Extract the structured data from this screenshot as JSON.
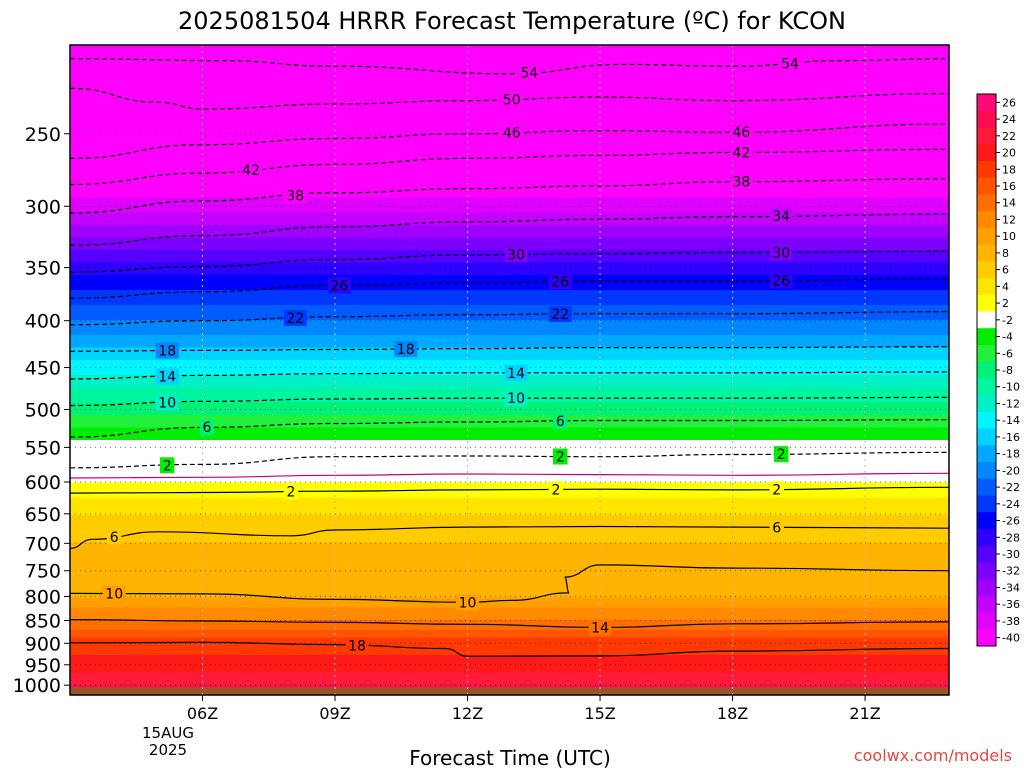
{
  "chart_data": {
    "type": "heatmap",
    "title": "2025081504 HRRR Forecast Temperature (ºC) for KCON",
    "xlabel": "Forecast Time (UTC)",
    "ylabel": "",
    "credit": "coolwx.com/models",
    "x_ticks": [
      "06Z",
      "09Z",
      "12Z",
      "15Z",
      "18Z",
      "21Z"
    ],
    "x_tick_hours": [
      6,
      9,
      12,
      15,
      18,
      21
    ],
    "x_date_lines": [
      "15AUG",
      "2025"
    ],
    "xlim_hours": [
      3.0,
      22.9
    ],
    "y_ticks": [
      250,
      300,
      350,
      400,
      450,
      500,
      550,
      600,
      650,
      700,
      750,
      800,
      850,
      900,
      950,
      1000
    ],
    "ylim_hpa": [
      1025,
      200
    ],
    "y_scale": "log",
    "grid": true,
    "colorbar_ticks": [
      26,
      24,
      22,
      20,
      18,
      16,
      14,
      12,
      10,
      8,
      6,
      4,
      2,
      -2,
      -4,
      -6,
      -8,
      -10,
      -12,
      -14,
      -16,
      -18,
      -20,
      -22,
      -24,
      -26,
      -28,
      -30,
      -32,
      -34,
      -36,
      -38,
      -40
    ],
    "colorbar_colors": [
      "#ff0a7a",
      "#ff0a55",
      "#ff1a3a",
      "#ff1a1a",
      "#ff3a00",
      "#ff5500",
      "#ff6e00",
      "#ff8a00",
      "#ffa000",
      "#ffb400",
      "#ffcc00",
      "#ffe400",
      "#ffff00",
      "#ffffff",
      "#00ee00",
      "#22f03c",
      "#00f078",
      "#00f5a0",
      "#00f0c8",
      "#00f5ff",
      "#00d2ff",
      "#00a8ff",
      "#0087ff",
      "#005cff",
      "#0037ff",
      "#0000ff",
      "#2d00ff",
      "#5500ff",
      "#7d00ff",
      "#a000ff",
      "#c400ff",
      "#e000ff",
      "#ff00ff"
    ],
    "temperature_profile": {
      "pressure_hpa": [
        1000,
        950,
        900,
        850,
        800,
        750,
        700,
        650,
        600,
        550,
        500,
        450,
        400,
        350,
        300,
        250,
        210
      ],
      "temp_c_at_06z": [
        24,
        21,
        19,
        14,
        10,
        9,
        8,
        6,
        2,
        -1,
        -7,
        -13,
        -20,
        -27,
        -37,
        -46,
        -54
      ]
    },
    "contours": [
      {
        "value": -54,
        "label": "54",
        "x": [
          3.0,
          6.4,
          9.0,
          13.0,
          15.5,
          18.0,
          20.5,
          22.9
        ],
        "p": [
          207,
          208,
          211,
          215,
          210,
          211,
          208,
          207
        ],
        "labels_at": [
          13.4,
          19.3
        ]
      },
      {
        "value": -50,
        "label": "50",
        "x": [
          3.0,
          5.0,
          6.0,
          9.0,
          12.0,
          15.0,
          18.0,
          22.9
        ],
        "p": [
          223,
          231,
          235,
          232,
          230,
          228,
          230,
          226
        ],
        "labels_at": [
          13.0
        ]
      },
      {
        "value": -46,
        "label": "46",
        "x": [
          3.0,
          6.0,
          9.0,
          12.0,
          15.0,
          18.0,
          22.9
        ],
        "p": [
          266,
          257,
          253,
          250,
          248,
          249,
          244
        ],
        "labels_at": [
          13.0,
          18.2
        ]
      },
      {
        "value": -42,
        "label": "42",
        "x": [
          3.0,
          6.0,
          9.0,
          12.0,
          15.0,
          18.0,
          22.9
        ],
        "p": [
          284,
          276,
          270,
          266,
          264,
          262,
          260
        ],
        "labels_at": [
          7.1,
          18.2
        ]
      },
      {
        "value": -38,
        "label": "38",
        "x": [
          3.0,
          6.0,
          9.0,
          12.0,
          15.0,
          18.0,
          22.9
        ],
        "p": [
          305,
          296,
          290,
          287,
          285,
          282,
          280
        ],
        "labels_at": [
          8.1,
          18.2
        ]
      },
      {
        "value": -34,
        "label": "34",
        "x": [
          3.0,
          6.0,
          9.0,
          12.0,
          15.0,
          18.0,
          22.9
        ],
        "p": [
          331,
          323,
          316,
          312,
          310,
          308,
          306
        ],
        "labels_at": [
          19.1
        ]
      },
      {
        "value": -30,
        "label": "30",
        "x": [
          3.0,
          6.0,
          9.0,
          12.0,
          15.0,
          18.0,
          22.9
        ],
        "p": [
          354,
          349,
          343,
          339,
          338,
          337,
          336
        ],
        "labels_at": [
          13.1,
          19.1
        ]
      },
      {
        "value": -26,
        "label": "26",
        "x": [
          3.0,
          6.0,
          9.0,
          12.0,
          15.0,
          18.0,
          22.9
        ],
        "p": [
          378,
          372,
          366,
          364,
          362,
          362,
          360
        ],
        "labels_at": [
          9.1,
          14.1,
          19.1
        ]
      },
      {
        "value": -22,
        "label": "22",
        "x": [
          3.0,
          6.0,
          9.0,
          12.0,
          15.0,
          18.0,
          22.9
        ],
        "p": [
          404,
          400,
          396,
          394,
          393,
          393,
          391
        ],
        "labels_at": [
          8.1,
          14.1
        ]
      },
      {
        "value": -18,
        "label": "18",
        "x": [
          3.0,
          6.0,
          9.0,
          12.0,
          15.0,
          18.0,
          22.9
        ],
        "p": [
          432,
          431,
          430,
          429,
          428,
          428,
          427
        ],
        "labels_at": [
          5.2,
          10.6
        ]
      },
      {
        "value": -14,
        "label": "14",
        "x": [
          3.0,
          6.0,
          9.0,
          12.0,
          15.0,
          18.0,
          22.9
        ],
        "p": [
          463,
          459,
          457,
          456,
          456,
          456,
          455
        ],
        "labels_at": [
          5.2,
          13.1
        ]
      },
      {
        "value": -10,
        "label": "10",
        "x": [
          3.0,
          6.0,
          9.0,
          12.0,
          15.0,
          18.0,
          22.9
        ],
        "p": [
          495,
          490,
          487,
          486,
          486,
          486,
          485
        ],
        "labels_at": [
          5.2,
          13.1
        ]
      },
      {
        "value": -6,
        "label": "6",
        "x": [
          3.0,
          6.0,
          9.0,
          12.0,
          15.0,
          18.0,
          22.9
        ],
        "p": [
          536,
          523,
          518,
          516,
          514,
          514,
          513
        ],
        "labels_at": [
          6.1,
          14.1
        ]
      },
      {
        "value": -2,
        "label": "2",
        "x": [
          3.0,
          6.0,
          9.0,
          12.0,
          15.0,
          18.0,
          22.9
        ],
        "p": [
          579,
          574,
          563,
          562,
          563,
          560,
          557
        ],
        "labels_at": [
          5.2,
          14.1,
          19.1
        ]
      },
      {
        "value": 0,
        "label": "",
        "x": [
          3.0,
          6.0,
          9.0,
          12.0,
          15.0,
          18.0,
          22.9
        ],
        "p": [
          594,
          593,
          590,
          588,
          589,
          590,
          587
        ],
        "labels_at": [],
        "color": "#c8007a"
      },
      {
        "value": 2,
        "label": "2",
        "x": [
          3.0,
          6.0,
          9.0,
          12.0,
          15.0,
          18.0,
          22.9
        ],
        "p": [
          617,
          616,
          614,
          612,
          611,
          612,
          608
        ],
        "labels_at": [
          8.0,
          14.0,
          19.0
        ]
      },
      {
        "value": 6,
        "label": "6",
        "x": [
          3.0,
          3.5,
          5.0,
          8.0,
          9.0,
          12.0,
          15.0,
          18.0,
          22.9
        ],
        "p": [
          709,
          693,
          680,
          687,
          677,
          672,
          671,
          672,
          674
        ],
        "labels_at": [
          4.0,
          19.0
        ]
      },
      {
        "value": 10,
        "label": "10",
        "x": [
          3.0,
          6.0,
          9.0,
          12.0,
          13.0,
          14.3,
          14.2,
          15.0,
          18.0,
          22.9
        ],
        "p": [
          794,
          795,
          806,
          812,
          808,
          793,
          762,
          739,
          745,
          750
        ],
        "labels_at": [
          4.0,
          12.0
        ]
      },
      {
        "value": 14,
        "label": "14",
        "x": [
          3.0,
          6.0,
          9.0,
          12.0,
          15.0,
          18.0,
          22.9
        ],
        "p": [
          848,
          851,
          854,
          858,
          865,
          857,
          853
        ],
        "labels_at": [
          15.0
        ]
      },
      {
        "value": 18,
        "label": "18",
        "x": [
          3.0,
          6.0,
          9.0,
          11.5,
          12.0,
          15.0,
          18.0,
          22.9
        ],
        "p": [
          899,
          898,
          903,
          912,
          930,
          929,
          918,
          912
        ],
        "labels_at": [
          9.5
        ]
      }
    ]
  }
}
